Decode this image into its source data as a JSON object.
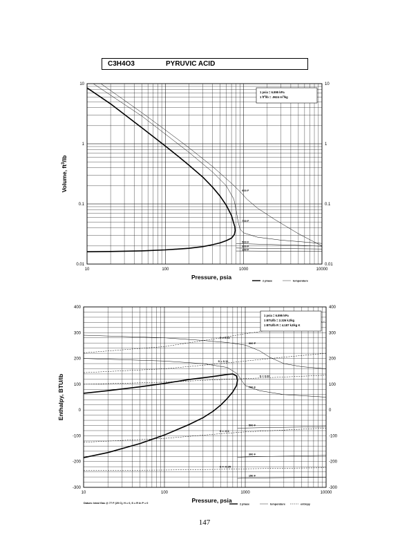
{
  "header": {
    "formula": "C3H4O3",
    "compound": "PYRUVIC ACID"
  },
  "page_number": "147",
  "chart_data": [
    {
      "type": "line",
      "xscale": "log",
      "yscale": "log",
      "xlim": [
        10,
        10000
      ],
      "ylim": [
        0.01,
        10
      ],
      "xlabel": "Pressure,  psia",
      "ylabel": "Volume, ft^3/lb",
      "x_ticks": [
        "10",
        "100",
        "1000",
        "10000"
      ],
      "y_ticks": [
        "0.01",
        "0.1",
        "1",
        "10"
      ],
      "notes": [
        "1 psia  =  6.895 kPa",
        "1 ft^3/lb  =  .0624 m^3/kg"
      ],
      "legend": [
        "2 phase",
        "temperature"
      ],
      "legend_placement": "bottom-right",
      "series": [
        {
          "name": "2 phase",
          "x": [
            10,
            20,
            50,
            100,
            150,
            200,
            300,
            400,
            500,
            600,
            700,
            740,
            770,
            780,
            760,
            700,
            600,
            500,
            400,
            300,
            200,
            100,
            50,
            20,
            10
          ],
          "y": [
            8.5,
            4.6,
            1.85,
            0.92,
            0.6,
            0.44,
            0.28,
            0.19,
            0.135,
            0.095,
            0.064,
            0.05,
            0.042,
            0.036,
            0.031,
            0.027,
            0.0245,
            0.0225,
            0.021,
            0.0195,
            0.0183,
            0.0172,
            0.0166,
            0.0162,
            0.016
          ]
        },
        {
          "label": "900 F",
          "x": [
            15,
            50,
            100,
            200,
            400,
            700,
            900,
            1100,
            1500,
            2500,
            5000,
            10000
          ],
          "y": [
            10,
            3.3,
            1.7,
            0.86,
            0.42,
            0.22,
            0.16,
            0.12,
            0.085,
            0.055,
            0.032,
            0.02
          ]
        },
        {
          "label": "700 F",
          "x": [
            12,
            50,
            100,
            200,
            400,
            600,
            750,
            800,
            850,
            900,
            1000,
            1500,
            3000,
            10000
          ],
          "y": [
            10,
            2.9,
            1.45,
            0.72,
            0.34,
            0.2,
            0.12,
            0.08,
            0.05,
            0.038,
            0.033,
            0.028,
            0.025,
            0.022
          ]
        },
        {
          "label": "500 F",
          "x": [
            800,
            1000,
            2000,
            5000,
            10000
          ],
          "y": [
            0.022,
            0.0218,
            0.0212,
            0.0205,
            0.0198
          ]
        },
        {
          "label": "300 F",
          "x": [
            800,
            1000,
            2000,
            5000,
            10000
          ],
          "y": [
            0.0185,
            0.0184,
            0.0182,
            0.018,
            0.0178
          ]
        },
        {
          "label": "150 F",
          "x": [
            800,
            1000,
            2000,
            5000,
            10000
          ],
          "y": [
            0.0165,
            0.0165,
            0.0164,
            0.0163,
            0.0162
          ]
        }
      ],
      "curve_labels": [
        "900 F",
        "700 F",
        "500 F",
        "300 F",
        "150 F"
      ]
    },
    {
      "type": "line",
      "xscale": "log",
      "yscale": "linear",
      "xlim": [
        10,
        10000
      ],
      "ylim": [
        -300,
        400
      ],
      "xlabel": "Pressure,  psia",
      "ylabel": "Enthalpy, BTU/lb",
      "x_ticks": [
        "10",
        "100",
        "1000",
        "10000"
      ],
      "y_ticks": [
        "-300",
        "-200",
        "-100",
        "0",
        "100",
        "200",
        "300",
        "400"
      ],
      "notes": [
        "1 psia  =  6.895 kPa",
        "1 BTU/lb  =  2.326 kJ/kg",
        "1 BTU/lb R  =  4.187 kJ/kg K"
      ],
      "datum": "Datum: Ideal Gas @ 77 F (25 C),  H = 0,  S = R ln P = 0",
      "legend": [
        "2 phase",
        "temperature",
        "entropy"
      ],
      "legend_placement": "bottom-right",
      "series": [
        {
          "name": "2 phase",
          "x": [
            10,
            20,
            50,
            100,
            200,
            400,
            600,
            700,
            780,
            800,
            780,
            700,
            600,
            500,
            400,
            300,
            200,
            100,
            50,
            20,
            10
          ],
          "y": [
            65,
            75,
            90,
            103,
            118,
            130,
            138,
            140,
            132,
            115,
            95,
            70,
            45,
            20,
            -5,
            -30,
            -57,
            -97,
            -130,
            -165,
            -185
          ]
        },
        {
          "label": "900 F",
          "x": [
            10,
            100,
            300,
            600,
            1000,
            1500,
            2000,
            3000,
            5000,
            10000
          ],
          "y": [
            290,
            280,
            270,
            262,
            252,
            230,
            205,
            180,
            168,
            160
          ]
        },
        {
          "label": "700 F",
          "x": [
            10,
            100,
            300,
            600,
            800,
            900,
            1000,
            1500,
            3000,
            10000
          ],
          "y": [
            200,
            190,
            180,
            165,
            140,
            115,
            95,
            75,
            60,
            50
          ]
        },
        {
          "label": "500 F",
          "x": [
            800,
            1000,
            2000,
            5000,
            10000
          ],
          "y": [
            -70,
            -70,
            -68,
            -66,
            -64
          ]
        },
        {
          "label": "300 F",
          "x": [
            800,
            1000,
            2000,
            5000,
            10000
          ],
          "y": [
            -183,
            -182,
            -180,
            -178,
            -176
          ]
        },
        {
          "label": "150 F",
          "x": [
            800,
            1000,
            2000,
            5000,
            10000
          ],
          "y": [
            -265,
            -264,
            -263,
            -262,
            -261
          ]
        },
        {
          "label": "S = 0.22",
          "x": [
            10,
            100,
            500,
            1000,
            3000,
            10000
          ],
          "y": [
            222,
            246,
            280,
            296,
            318,
            345
          ]
        },
        {
          "label": "S = 0.11",
          "x": [
            10,
            100,
            500,
            1000,
            3000,
            10000
          ],
          "y": [
            145,
            160,
            180,
            190,
            205,
            220
          ]
        },
        {
          "label": "S = 0.00",
          "x": [
            10,
            100,
            500,
            1000,
            3000,
            10000
          ],
          "y": [
            100,
            108,
            118,
            122,
            128,
            135
          ]
        },
        {
          "label": "S = -0.1",
          "x": [
            10,
            100,
            500,
            1000,
            3000,
            10000
          ],
          "y": [
            -125,
            -110,
            -92,
            -85,
            -78,
            -70
          ]
        },
        {
          "label": "S = -0.35",
          "x": [
            10,
            100,
            500,
            1000,
            3000,
            10000
          ],
          "y": [
            -235,
            -233,
            -230,
            -228,
            -226,
            -224
          ]
        }
      ],
      "curve_labels": [
        "900 F",
        "700 F",
        "500 F",
        "300 F",
        "150 F",
        "S = 0.22",
        "S = 0.11",
        "S = 0.00",
        "S = -0.1",
        "S = -0.35"
      ]
    }
  ]
}
